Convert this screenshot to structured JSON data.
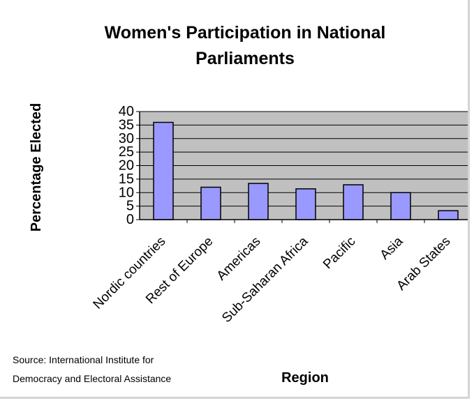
{
  "chart_data": {
    "type": "bar",
    "title": [
      "Women's Participation in National",
      "Parliaments"
    ],
    "xlabel": "Region",
    "ylabel": "Percentage Elected",
    "categories": [
      "Nordic countries",
      "Rest of Europe",
      "Americas",
      "Sub-Saharan Africa",
      "Pacific",
      "Asia",
      "Arab States"
    ],
    "values": [
      36,
      12,
      13.4,
      11.4,
      12.9,
      10,
      3.3
    ],
    "ylim": [
      0,
      40
    ],
    "yticks": [
      "0",
      "5",
      "10",
      "15",
      "20",
      "25",
      "30",
      "35",
      "40"
    ],
    "grid": true,
    "legend": "none",
    "colors": {
      "bar_fill": "#9999ff",
      "bar_stroke": "#000000",
      "plot_background": "#c0c0c0",
      "gridline": "#000000"
    }
  },
  "source_note": [
    "Source:  International Institute for",
    "Democracy and Electoral Assistance"
  ]
}
